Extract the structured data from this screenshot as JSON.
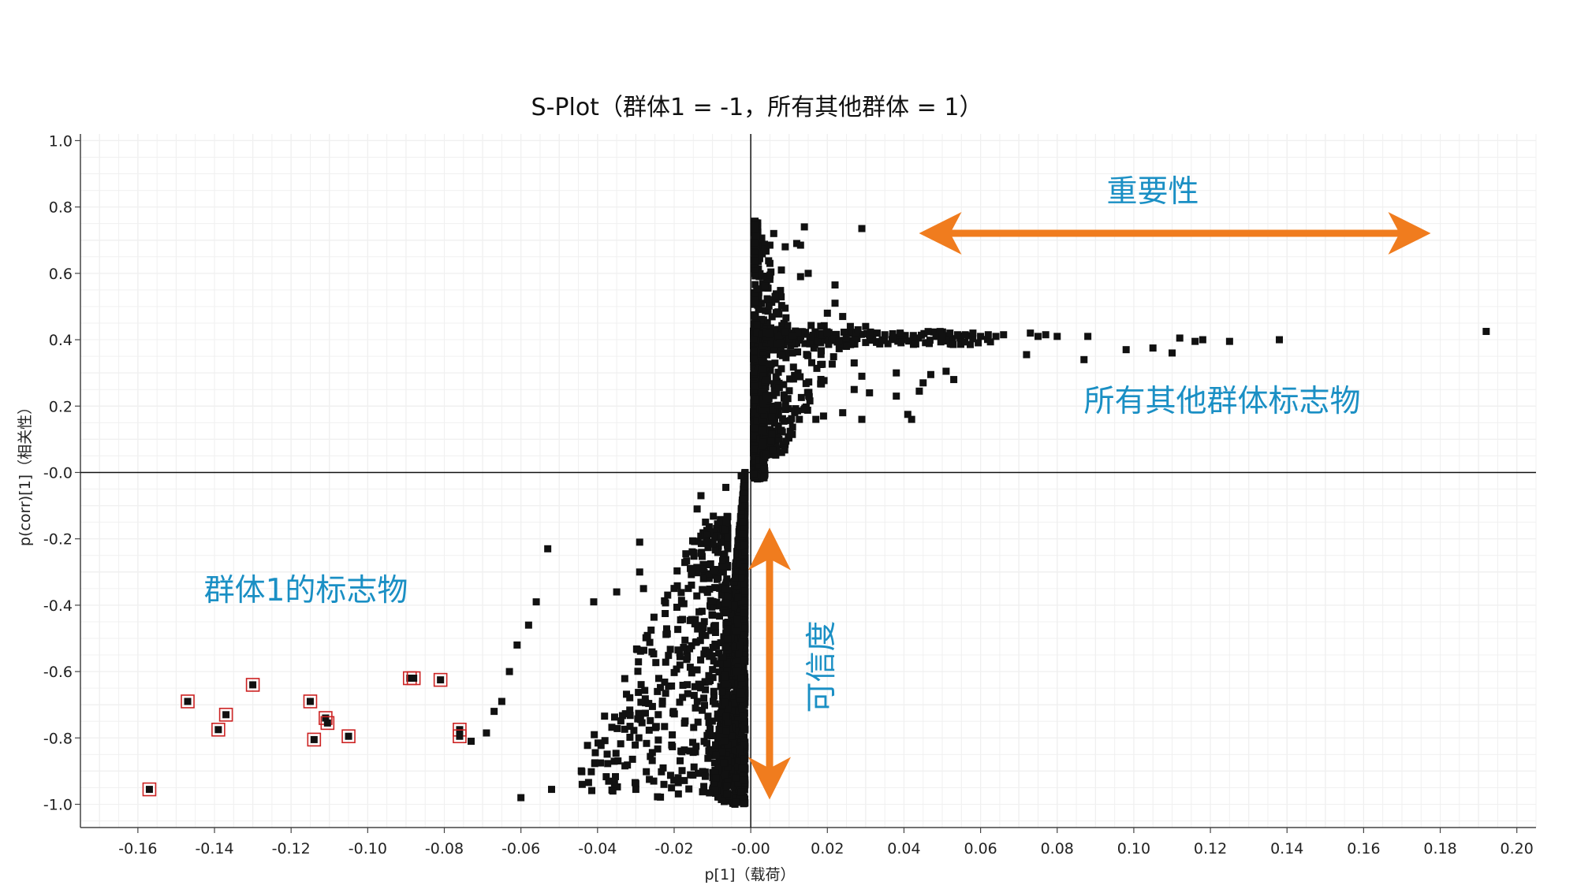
{
  "chart_data": {
    "type": "scatter",
    "title": "S-Plot（群体1 = -1，所有其他群体 = 1）",
    "xlabel": "p[1]（载荷）",
    "ylabel": "p(corr)[1]（相关性）",
    "xlim": [
      -0.175,
      0.205
    ],
    "ylim": [
      -1.07,
      1.02
    ],
    "x_ticks": [
      "-0.16",
      "-0.14",
      "-0.12",
      "-0.10",
      "-0.08",
      "-0.06",
      "-0.04",
      "-0.02",
      "-0.00",
      "0.02",
      "0.04",
      "0.06",
      "0.08",
      "0.10",
      "0.12",
      "0.14",
      "0.16",
      "0.18",
      "0.20"
    ],
    "y_ticks": [
      "1.0",
      "0.8",
      "0.6",
      "0.4",
      "0.2",
      "-0.0",
      "-0.2",
      "-0.4",
      "-0.6",
      "-0.8",
      "-1.0"
    ],
    "grid": true,
    "colors": {
      "points": "#111111",
      "highlight_box": "#cc2222",
      "arrow": "#f07c1e",
      "annotation": "#1a8fc4",
      "grid": "#e2e2e2"
    },
    "highlighted_points": [
      [
        -0.157,
        -0.955
      ],
      [
        -0.147,
        -0.69
      ],
      [
        -0.139,
        -0.775
      ],
      [
        -0.137,
        -0.73
      ],
      [
        -0.13,
        -0.64
      ],
      [
        -0.115,
        -0.69
      ],
      [
        -0.114,
        -0.805
      ],
      [
        -0.111,
        -0.74
      ],
      [
        -0.1105,
        -0.755
      ],
      [
        -0.105,
        -0.795
      ],
      [
        -0.089,
        -0.62
      ],
      [
        -0.088,
        -0.62
      ],
      [
        -0.081,
        -0.625
      ],
      [
        -0.076,
        -0.775
      ],
      [
        -0.076,
        -0.795
      ]
    ],
    "points": [
      [
        0.192,
        0.425
      ],
      [
        0.138,
        0.4
      ],
      [
        0.125,
        0.395
      ],
      [
        0.118,
        0.4
      ],
      [
        0.116,
        0.395
      ],
      [
        0.112,
        0.405
      ],
      [
        0.11,
        0.36
      ],
      [
        0.105,
        0.375
      ],
      [
        0.098,
        0.37
      ],
      [
        0.088,
        0.41
      ],
      [
        0.087,
        0.34
      ],
      [
        0.08,
        0.41
      ],
      [
        0.077,
        0.415
      ],
      [
        0.075,
        0.41
      ],
      [
        0.073,
        0.42
      ],
      [
        0.072,
        0.355
      ],
      [
        0.066,
        0.415
      ],
      [
        0.064,
        0.41
      ],
      [
        0.062,
        0.415
      ],
      [
        0.06,
        0.41
      ],
      [
        0.058,
        0.42
      ],
      [
        0.056,
        0.415
      ],
      [
        0.054,
        0.415
      ],
      [
        0.052,
        0.42
      ],
      [
        0.05,
        0.41
      ],
      [
        0.053,
        0.28
      ],
      [
        0.051,
        0.305
      ],
      [
        0.047,
        0.295
      ],
      [
        0.045,
        0.27
      ],
      [
        0.044,
        0.245
      ],
      [
        0.042,
        0.16
      ],
      [
        0.041,
        0.175
      ],
      [
        0.038,
        0.3
      ],
      [
        0.038,
        0.23
      ],
      [
        0.039,
        0.42
      ],
      [
        0.037,
        0.41
      ],
      [
        0.035,
        0.415
      ],
      [
        0.033,
        0.42
      ],
      [
        0.031,
        0.415
      ],
      [
        0.029,
        0.735
      ],
      [
        0.022,
        0.565
      ],
      [
        0.014,
        0.74
      ],
      [
        0.012,
        0.69
      ],
      [
        0.013,
        0.685
      ],
      [
        0.009,
        0.68
      ],
      [
        0.006,
        0.72
      ],
      [
        0.005,
        0.685
      ],
      [
        0.005,
        0.63
      ],
      [
        0.008,
        0.61
      ],
      [
        0.013,
        0.59
      ],
      [
        0.015,
        0.6
      ],
      [
        0.02,
        0.48
      ],
      [
        0.022,
        0.51
      ],
      [
        0.024,
        0.47
      ],
      [
        0.026,
        0.44
      ],
      [
        0.028,
        0.43
      ],
      [
        0.03,
        0.44
      ],
      [
        0.025,
        0.38
      ],
      [
        0.027,
        0.33
      ],
      [
        0.029,
        0.29
      ],
      [
        0.027,
        0.25
      ],
      [
        0.031,
        0.24
      ],
      [
        0.029,
        0.16
      ],
      [
        0.024,
        0.18
      ],
      [
        0.019,
        0.17
      ],
      [
        0.017,
        0.16
      ],
      [
        -0.053,
        -0.23
      ],
      [
        -0.056,
        -0.39
      ],
      [
        -0.058,
        -0.46
      ],
      [
        -0.061,
        -0.52
      ],
      [
        -0.063,
        -0.6
      ],
      [
        -0.065,
        -0.69
      ],
      [
        -0.067,
        -0.72
      ],
      [
        -0.069,
        -0.785
      ],
      [
        -0.073,
        -0.81
      ],
      [
        -0.06,
        -0.98
      ],
      [
        -0.052,
        -0.955
      ],
      [
        -0.044,
        -0.94
      ],
      [
        -0.036,
        -0.96
      ],
      [
        -0.03,
        -0.955
      ],
      [
        -0.041,
        -0.39
      ],
      [
        -0.035,
        -0.36
      ],
      [
        -0.028,
        -0.35
      ],
      [
        -0.029,
        -0.3
      ],
      [
        -0.029,
        -0.21
      ],
      [
        -0.014,
        -0.11
      ],
      [
        -0.013,
        -0.07
      ],
      [
        -0.0065,
        -0.045
      ],
      [
        -0.0025,
        -0.01
      ]
    ],
    "cloud": {
      "pos_band": [
        [
          0.0,
          0.4
        ],
        [
          0.004,
          0.42
        ],
        [
          0.007,
          0.43
        ],
        [
          0.015,
          0.425
        ],
        [
          0.024,
          0.42
        ],
        [
          0.03,
          0.41
        ]
      ],
      "pos_spread": [
        [
          0.002,
          -0.02
        ],
        [
          0.004,
          0.12
        ],
        [
          0.008,
          0.2
        ],
        [
          0.012,
          0.28
        ],
        [
          0.016,
          0.34
        ],
        [
          0.02,
          0.37
        ],
        [
          0.026,
          0.395
        ]
      ],
      "neg_spread": [
        [
          -0.004,
          -0.06
        ],
        [
          -0.009,
          -0.28
        ],
        [
          -0.014,
          -0.42
        ],
        [
          -0.019,
          -0.52
        ],
        [
          -0.025,
          -0.62
        ],
        [
          -0.032,
          -0.71
        ],
        [
          -0.04,
          -0.77
        ],
        [
          -0.048,
          -0.83
        ]
      ]
    },
    "annotations": {
      "importance": "重要性",
      "confidence": "可信度",
      "other_markers": "所有其他群体标志物",
      "group1_markers": "群体1的标志物"
    }
  }
}
